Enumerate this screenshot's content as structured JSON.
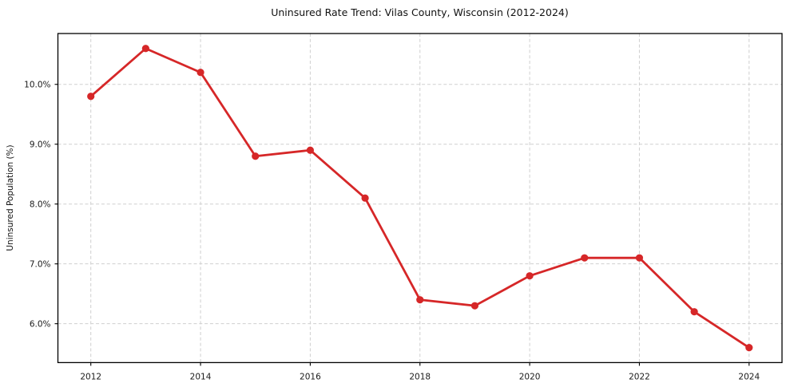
{
  "figure": {
    "title": "Uninsured Rate Trend: Vilas County, Wisconsin (2012-2024)",
    "y_axis_label": "Uninsured Population (%)"
  },
  "colors": {
    "line": "#d62728",
    "grid": "#cfcfcf",
    "axis": "#000000",
    "text": "#1a1a1a",
    "background": "#ffffff"
  },
  "chart_data": {
    "type": "line",
    "title": "Uninsured Rate Trend: Vilas County, Wisconsin (2012-2024)",
    "xlabel": "",
    "ylabel": "Uninsured Population (%)",
    "x": [
      2012,
      2013,
      2014,
      2015,
      2016,
      2017,
      2018,
      2019,
      2020,
      2021,
      2022,
      2023,
      2024
    ],
    "values": [
      9.8,
      10.6,
      10.2,
      8.8,
      8.9,
      8.1,
      6.4,
      6.3,
      6.8,
      7.1,
      7.1,
      6.2,
      5.6
    ],
    "xlim": [
      2011.4,
      2024.6
    ],
    "ylim": [
      5.35,
      10.85
    ],
    "xticks": [
      2012,
      2014,
      2016,
      2018,
      2020,
      2022,
      2024
    ],
    "xtick_labels": [
      "2012",
      "2014",
      "2016",
      "2018",
      "2020",
      "2022",
      "2024"
    ],
    "yticks": [
      6,
      7,
      8,
      9,
      10
    ],
    "ytick_labels": [
      "6.0%",
      "7.0%",
      "8.0%",
      "9.0%",
      "10.0%"
    ],
    "grid": true,
    "grid_style": "dashed",
    "legend_position": "none",
    "marker": "circle"
  }
}
